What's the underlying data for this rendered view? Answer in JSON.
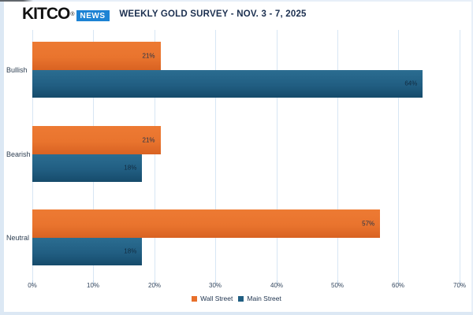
{
  "header": {
    "logo": {
      "brand": "KITCO",
      "registered": "®",
      "badge": "NEWS"
    },
    "title": "WEEKLY GOLD SURVEY - NOV. 3 - 7, 2025"
  },
  "colors": {
    "wall_street_orange": "#e8702b",
    "main_street_blue": "#205e82",
    "gridline_blue": "#d7e6f4",
    "title_navy": "#1c3050",
    "badge_blue": "#1d83d4",
    "frame_blue": "#dce8f4"
  },
  "chart_data": {
    "type": "bar",
    "orientation": "horizontal",
    "title": "WEEKLY GOLD SURVEY - NOV. 3 - 7, 2025",
    "categories": [
      "Bullish",
      "Bearish",
      "Neutral"
    ],
    "series": [
      {
        "name": "Wall Street",
        "color": "#e8702b",
        "values": [
          21,
          21,
          57
        ]
      },
      {
        "name": "Main Street",
        "color": "#205e82",
        "values": [
          64,
          18,
          18
        ]
      }
    ],
    "value_suffix": "%",
    "x_ticks": [
      "0%",
      "10%",
      "20%",
      "30%",
      "40%",
      "50%",
      "60%",
      "70%"
    ],
    "xlim": [
      0,
      70
    ],
    "grid": true,
    "legend_position": "bottom"
  }
}
